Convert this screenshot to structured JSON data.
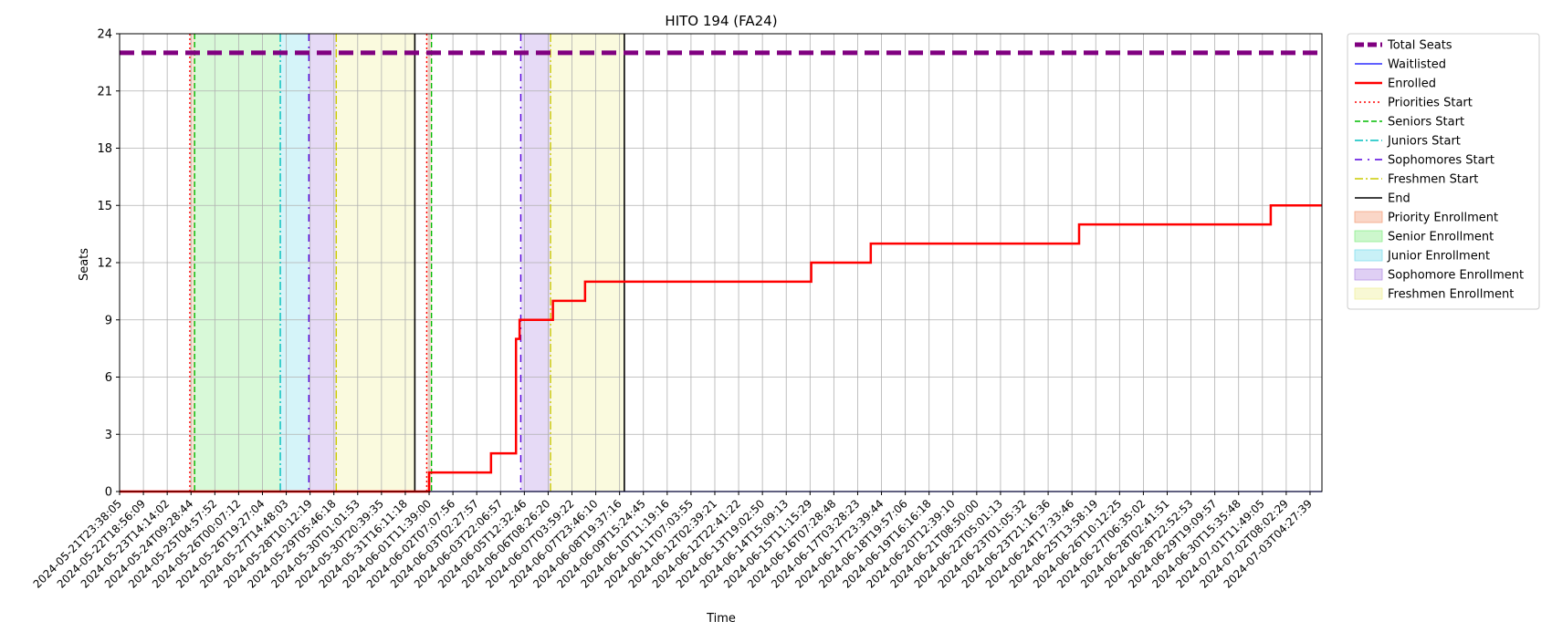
{
  "chart_data": {
    "type": "line",
    "title": "HITO 194 (FA24)",
    "xlabel": "Time",
    "ylabel": "Seats",
    "ylim": [
      0,
      24
    ],
    "yticks": [
      0,
      3,
      6,
      9,
      12,
      15,
      18,
      21,
      24
    ],
    "grid": true,
    "legend_position": "outside-right",
    "x_tick_labels": [
      "2024-05-21T23:38:05",
      "2024-05-22T18:56:09",
      "2024-05-23T14:14:02",
      "2024-05-24T09:28:44",
      "2024-05-25T04:57:52",
      "2024-05-26T00:07:12",
      "2024-05-26T19:27:04",
      "2024-05-27T14:48:03",
      "2024-05-28T10:12:19",
      "2024-05-29T05:46:18",
      "2024-05-30T01:01:53",
      "2024-05-30T20:39:35",
      "2024-05-31T16:11:18",
      "2024-06-01T11:39:00",
      "2024-06-02T07:07:56",
      "2024-06-03T02:27:57",
      "2024-06-03T22:06:57",
      "2024-06-05T12:32:46",
      "2024-06-06T08:26:20",
      "2024-06-07T03:59:22",
      "2024-06-07T23:46:10",
      "2024-06-08T19:37:16",
      "2024-06-09T15:24:45",
      "2024-06-10T11:19:16",
      "2024-06-11T07:03:55",
      "2024-06-12T02:39:21",
      "2024-06-12T22:41:22",
      "2024-06-13T19:02:50",
      "2024-06-14T15:09:13",
      "2024-06-15T11:15:29",
      "2024-06-16T07:28:48",
      "2024-06-17T03:28:23",
      "2024-06-17T23:39:44",
      "2024-06-18T19:57:06",
      "2024-06-19T16:16:18",
      "2024-06-20T12:39:10",
      "2024-06-21T08:50:00",
      "2024-06-22T05:01:13",
      "2024-06-23T01:05:32",
      "2024-06-23T21:16:36",
      "2024-06-24T17:33:46",
      "2024-06-25T13:58:19",
      "2024-06-26T10:12:25",
      "2024-06-27T06:35:02",
      "2024-06-28T02:41:51",
      "2024-06-28T22:52:53",
      "2024-06-29T19:09:57",
      "2024-06-30T15:35:48",
      "2024-07-01T11:49:05",
      "2024-07-02T08:02:29",
      "2024-07-03T04:27:39"
    ],
    "x_range_ticks": [
      0,
      50.5
    ],
    "series": [
      {
        "name": "Total Seats",
        "color": "#800080",
        "style": "dashed-thick",
        "points": [
          [
            0,
            23
          ],
          [
            50.5,
            23
          ]
        ]
      },
      {
        "name": "Waitlisted",
        "color": "#0000ff",
        "style": "solid-thin",
        "points": [
          [
            0,
            0
          ],
          [
            50.5,
            0
          ]
        ]
      },
      {
        "name": "Enrolled",
        "color": "#ff0000",
        "style": "solid-thick",
        "points": [
          [
            0,
            0
          ],
          [
            13.0,
            0
          ],
          [
            13.0,
            1
          ],
          [
            15.6,
            1
          ],
          [
            15.6,
            2
          ],
          [
            16.65,
            2
          ],
          [
            16.65,
            8
          ],
          [
            16.8,
            8
          ],
          [
            16.8,
            9
          ],
          [
            18.2,
            9
          ],
          [
            18.2,
            10
          ],
          [
            19.55,
            10
          ],
          [
            19.55,
            11
          ],
          [
            29.05,
            11
          ],
          [
            29.05,
            12
          ],
          [
            31.55,
            12
          ],
          [
            31.55,
            13
          ],
          [
            40.3,
            13
          ],
          [
            40.3,
            14
          ],
          [
            48.35,
            14
          ],
          [
            48.35,
            15
          ],
          [
            50.5,
            15
          ]
        ]
      }
    ],
    "markers": [
      {
        "name": "Priorities Start",
        "color": "#ff0000",
        "style": "dotted",
        "x": [
          2.95,
          12.9
        ]
      },
      {
        "name": "Seniors Start",
        "color": "#00bb00",
        "style": "dashed",
        "x": [
          3.15,
          13.1
        ]
      },
      {
        "name": "Juniors Start",
        "color": "#00bfbf",
        "style": "dashdot",
        "x": [
          6.75
        ]
      },
      {
        "name": "Sophomores Start",
        "color": "#5500dd",
        "style": "dashdotsparse",
        "x": [
          7.95,
          16.85
        ]
      },
      {
        "name": "Freshmen Start",
        "color": "#cccc00",
        "style": "dashdot",
        "x": [
          9.1,
          18.1
        ]
      },
      {
        "name": "End",
        "color": "#000000",
        "style": "solid",
        "x": [
          12.4,
          21.2
        ]
      }
    ],
    "spans": [
      {
        "name": "Priority Enrollment",
        "color": "#f4a582",
        "ranges": [
          [
            2.95,
            3.15
          ],
          [
            12.9,
            13.1
          ]
        ]
      },
      {
        "name": "Senior Enrollment",
        "color": "#90ee90",
        "ranges": [
          [
            3.15,
            6.75
          ]
        ]
      },
      {
        "name": "Junior Enrollment",
        "color": "#87e0ee",
        "ranges": [
          [
            6.75,
            7.95
          ]
        ]
      },
      {
        "name": "Sophomore Enrollment",
        "color": "#b794e6",
        "ranges": [
          [
            7.95,
            9.1
          ],
          [
            16.85,
            18.1
          ]
        ]
      },
      {
        "name": "Freshmen Enrollment",
        "color": "#f0f0a0",
        "ranges": [
          [
            9.1,
            12.4
          ],
          [
            18.1,
            21.2
          ]
        ]
      }
    ],
    "legend": [
      {
        "label": "Total Seats",
        "kind": "line",
        "color": "#800080",
        "style": "dashed-thick"
      },
      {
        "label": "Waitlisted",
        "kind": "line",
        "color": "#0000ff",
        "style": "solid-thin"
      },
      {
        "label": "Enrolled",
        "kind": "line",
        "color": "#ff0000",
        "style": "solid-thick"
      },
      {
        "label": "Priorities Start",
        "kind": "line",
        "color": "#ff0000",
        "style": "dotted"
      },
      {
        "label": "Seniors Start",
        "kind": "line",
        "color": "#00bb00",
        "style": "dashed"
      },
      {
        "label": "Juniors Start",
        "kind": "line",
        "color": "#00bfbf",
        "style": "dashdot"
      },
      {
        "label": "Sophomores Start",
        "kind": "line",
        "color": "#5500dd",
        "style": "dashdotsparse"
      },
      {
        "label": "Freshmen Start",
        "kind": "line",
        "color": "#cccc00",
        "style": "dashdot"
      },
      {
        "label": "End",
        "kind": "line",
        "color": "#000000",
        "style": "solid"
      },
      {
        "label": "Priority Enrollment",
        "kind": "patch",
        "color": "#f4a582"
      },
      {
        "label": "Senior Enrollment",
        "kind": "patch",
        "color": "#90ee90"
      },
      {
        "label": "Junior Enrollment",
        "kind": "patch",
        "color": "#87e0ee"
      },
      {
        "label": "Sophomore Enrollment",
        "kind": "patch",
        "color": "#b794e6"
      },
      {
        "label": "Freshmen Enrollment",
        "kind": "patch",
        "color": "#f0f0a0"
      }
    ]
  }
}
